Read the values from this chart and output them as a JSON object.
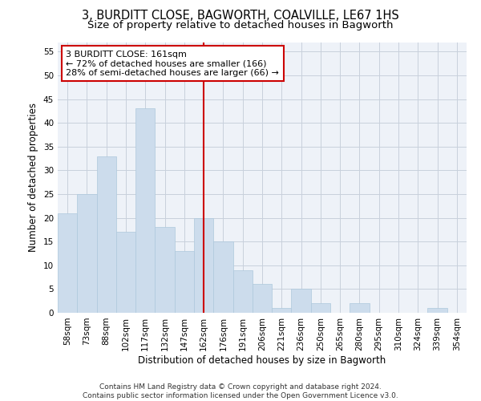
{
  "title1": "3, BURDITT CLOSE, BAGWORTH, COALVILLE, LE67 1HS",
  "title2": "Size of property relative to detached houses in Bagworth",
  "xlabel": "Distribution of detached houses by size in Bagworth",
  "ylabel": "Number of detached properties",
  "categories": [
    "58sqm",
    "73sqm",
    "88sqm",
    "102sqm",
    "117sqm",
    "132sqm",
    "147sqm",
    "162sqm",
    "176sqm",
    "191sqm",
    "206sqm",
    "221sqm",
    "236sqm",
    "250sqm",
    "265sqm",
    "280sqm",
    "295sqm",
    "310sqm",
    "324sqm",
    "339sqm",
    "354sqm"
  ],
  "values": [
    21,
    25,
    33,
    17,
    43,
    18,
    13,
    20,
    15,
    9,
    6,
    1,
    5,
    2,
    0,
    2,
    0,
    0,
    0,
    1,
    0
  ],
  "bar_color": "#ccdcec",
  "bar_edgecolor": "#aec8dc",
  "vline_x_index": 7,
  "vline_color": "#cc0000",
  "annotation_text": "3 BURDITT CLOSE: 161sqm\n← 72% of detached houses are smaller (166)\n28% of semi-detached houses are larger (66) →",
  "annotation_box_color": "#ffffff",
  "annotation_box_edgecolor": "#cc0000",
  "ylim": [
    0,
    57
  ],
  "yticks": [
    0,
    5,
    10,
    15,
    20,
    25,
    30,
    35,
    40,
    45,
    50,
    55
  ],
  "grid_color": "#c8d0dc",
  "background_color": "#eef2f8",
  "footer_text": "Contains HM Land Registry data © Crown copyright and database right 2024.\nContains public sector information licensed under the Open Government Licence v3.0.",
  "title1_fontsize": 10.5,
  "title2_fontsize": 9.5,
  "xlabel_fontsize": 8.5,
  "ylabel_fontsize": 8.5,
  "tick_fontsize": 7.5,
  "annotation_fontsize": 8,
  "footer_fontsize": 6.5
}
